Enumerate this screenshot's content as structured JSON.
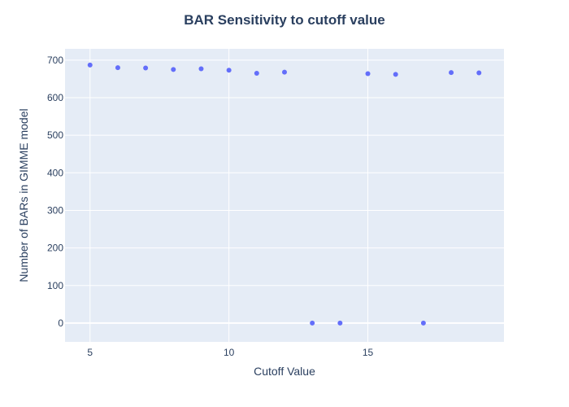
{
  "chart_data": {
    "type": "scatter",
    "title": "BAR Sensitivity to cutoff value",
    "xlabel": "Cutoff Value",
    "ylabel": "Number of BARs in GIMME model",
    "x": [
      5,
      6,
      7,
      8,
      9,
      10,
      11,
      12,
      13,
      14,
      15,
      16,
      17,
      18,
      19
    ],
    "y": [
      687,
      680,
      679,
      675,
      677,
      673,
      665,
      668,
      0,
      0,
      664,
      662,
      0,
      667,
      666
    ],
    "xlim": [
      4.1,
      19.9
    ],
    "ylim": [
      -50,
      730
    ],
    "xticks": [
      5,
      10,
      15
    ],
    "yticks": [
      0,
      100,
      200,
      300,
      400,
      500,
      600,
      700
    ],
    "grid": true,
    "legend": "none",
    "colors": {
      "marker": "#636efa",
      "plot_bg": "#e5ecf6",
      "grid": "#ffffff",
      "text": "#2a3f5f"
    }
  }
}
